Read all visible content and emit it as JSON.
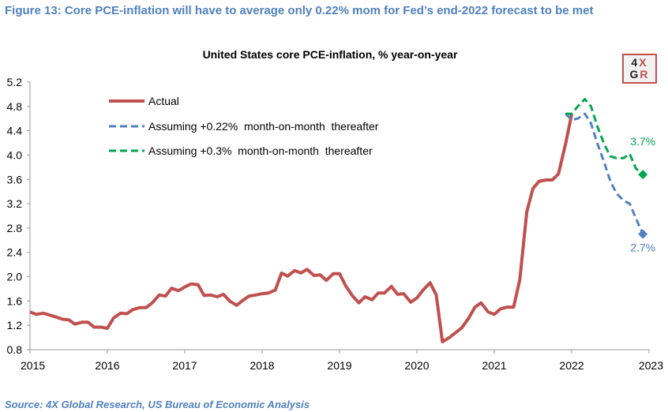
{
  "figure_title": "Figure 13: Core PCE-inflation will have to average only 0.22% mom for Fed’s end-2022 forecast to be met",
  "source": "Source: 4X Global Research, US Bureau of Economic Analysis",
  "logo": {
    "line1_a": "4",
    "line1_b": "X",
    "line2_a": "G",
    "line2_b": "R"
  },
  "chart_data": {
    "type": "line",
    "title": "United States core PCE-inflation, % year-on-year",
    "xlabel": "",
    "ylabel": "",
    "xlim": [
      2015,
      2023
    ],
    "ylim": [
      0.8,
      5.2
    ],
    "x_ticks": [
      "2015",
      "2016",
      "2017",
      "2018",
      "2019",
      "2020",
      "2021",
      "2022",
      "2023"
    ],
    "y_ticks": [
      "0.8",
      "1.2",
      "1.6",
      "2.0",
      "2.4",
      "2.8",
      "3.2",
      "3.6",
      "4.0",
      "4.4",
      "4.8",
      "5.2"
    ],
    "grid": false,
    "legend_position": "top-left",
    "series": [
      {
        "name": "Actual",
        "color": "#c0504d",
        "style": "solid",
        "points": [
          [
            2015.0,
            1.42
          ],
          [
            2015.08,
            1.38
          ],
          [
            2015.17,
            1.4
          ],
          [
            2015.25,
            1.37
          ],
          [
            2015.33,
            1.34
          ],
          [
            2015.42,
            1.3
          ],
          [
            2015.5,
            1.29
          ],
          [
            2015.58,
            1.22
          ],
          [
            2015.67,
            1.25
          ],
          [
            2015.75,
            1.25
          ],
          [
            2015.83,
            1.17
          ],
          [
            2015.92,
            1.17
          ],
          [
            2016.0,
            1.15
          ],
          [
            2016.08,
            1.32
          ],
          [
            2016.17,
            1.4
          ],
          [
            2016.25,
            1.39
          ],
          [
            2016.33,
            1.46
          ],
          [
            2016.42,
            1.49
          ],
          [
            2016.5,
            1.49
          ],
          [
            2016.58,
            1.57
          ],
          [
            2016.67,
            1.7
          ],
          [
            2016.75,
            1.68
          ],
          [
            2016.83,
            1.81
          ],
          [
            2016.92,
            1.77
          ],
          [
            2017.0,
            1.83
          ],
          [
            2017.08,
            1.88
          ],
          [
            2017.17,
            1.87
          ],
          [
            2017.25,
            1.69
          ],
          [
            2017.33,
            1.7
          ],
          [
            2017.42,
            1.67
          ],
          [
            2017.5,
            1.71
          ],
          [
            2017.58,
            1.6
          ],
          [
            2017.67,
            1.53
          ],
          [
            2017.75,
            1.61
          ],
          [
            2017.83,
            1.68
          ],
          [
            2017.92,
            1.7
          ],
          [
            2018.0,
            1.72
          ],
          [
            2018.08,
            1.73
          ],
          [
            2018.17,
            1.78
          ],
          [
            2018.25,
            2.06
          ],
          [
            2018.33,
            2.01
          ],
          [
            2018.42,
            2.1
          ],
          [
            2018.5,
            2.06
          ],
          [
            2018.58,
            2.12
          ],
          [
            2018.67,
            2.02
          ],
          [
            2018.75,
            2.03
          ],
          [
            2018.83,
            1.94
          ],
          [
            2018.92,
            2.05
          ],
          [
            2019.0,
            2.05
          ],
          [
            2019.08,
            1.85
          ],
          [
            2019.17,
            1.68
          ],
          [
            2019.25,
            1.57
          ],
          [
            2019.33,
            1.67
          ],
          [
            2019.42,
            1.62
          ],
          [
            2019.5,
            1.73
          ],
          [
            2019.58,
            1.73
          ],
          [
            2019.67,
            1.84
          ],
          [
            2019.75,
            1.71
          ],
          [
            2019.83,
            1.72
          ],
          [
            2019.92,
            1.58
          ],
          [
            2020.0,
            1.65
          ],
          [
            2020.08,
            1.78
          ],
          [
            2020.17,
            1.9
          ],
          [
            2020.25,
            1.7
          ],
          [
            2020.33,
            0.93
          ],
          [
            2020.42,
            1.0
          ],
          [
            2020.5,
            1.08
          ],
          [
            2020.58,
            1.16
          ],
          [
            2020.67,
            1.32
          ],
          [
            2020.75,
            1.5
          ],
          [
            2020.83,
            1.57
          ],
          [
            2020.92,
            1.42
          ],
          [
            2021.0,
            1.38
          ],
          [
            2021.08,
            1.47
          ],
          [
            2021.17,
            1.5
          ],
          [
            2021.25,
            1.5
          ],
          [
            2021.33,
            1.95
          ],
          [
            2021.42,
            3.07
          ],
          [
            2021.5,
            3.45
          ],
          [
            2021.58,
            3.57
          ],
          [
            2021.67,
            3.59
          ],
          [
            2021.75,
            3.59
          ],
          [
            2021.83,
            3.69
          ],
          [
            2021.92,
            4.18
          ],
          [
            2022.0,
            4.67
          ]
        ]
      },
      {
        "name": "Assuming +0.22%  month-on-month  thereafter",
        "color": "#4f81bd",
        "style": "dashed",
        "points": [
          [
            2021.92,
            4.68
          ],
          [
            2022.0,
            4.58
          ],
          [
            2022.08,
            4.6
          ],
          [
            2022.17,
            4.68
          ],
          [
            2022.25,
            4.52
          ],
          [
            2022.33,
            4.2
          ],
          [
            2022.42,
            3.88
          ],
          [
            2022.5,
            3.57
          ],
          [
            2022.58,
            3.37
          ],
          [
            2022.67,
            3.25
          ],
          [
            2022.75,
            3.2
          ],
          [
            2022.83,
            2.96
          ],
          [
            2022.92,
            2.7
          ]
        ],
        "end_label": "2.7%"
      },
      {
        "name": "Assuming +0.3%  month-on-month  thereafter",
        "color": "#00a651",
        "style": "dashed",
        "points": [
          [
            2021.92,
            4.68
          ],
          [
            2022.0,
            4.68
          ],
          [
            2022.08,
            4.8
          ],
          [
            2022.17,
            4.92
          ],
          [
            2022.25,
            4.8
          ],
          [
            2022.33,
            4.48
          ],
          [
            2022.42,
            4.18
          ],
          [
            2022.5,
            3.98
          ],
          [
            2022.58,
            3.95
          ],
          [
            2022.67,
            3.95
          ],
          [
            2022.75,
            4.02
          ],
          [
            2022.83,
            3.78
          ],
          [
            2022.92,
            3.68
          ]
        ],
        "end_label": "3.7%"
      }
    ]
  }
}
